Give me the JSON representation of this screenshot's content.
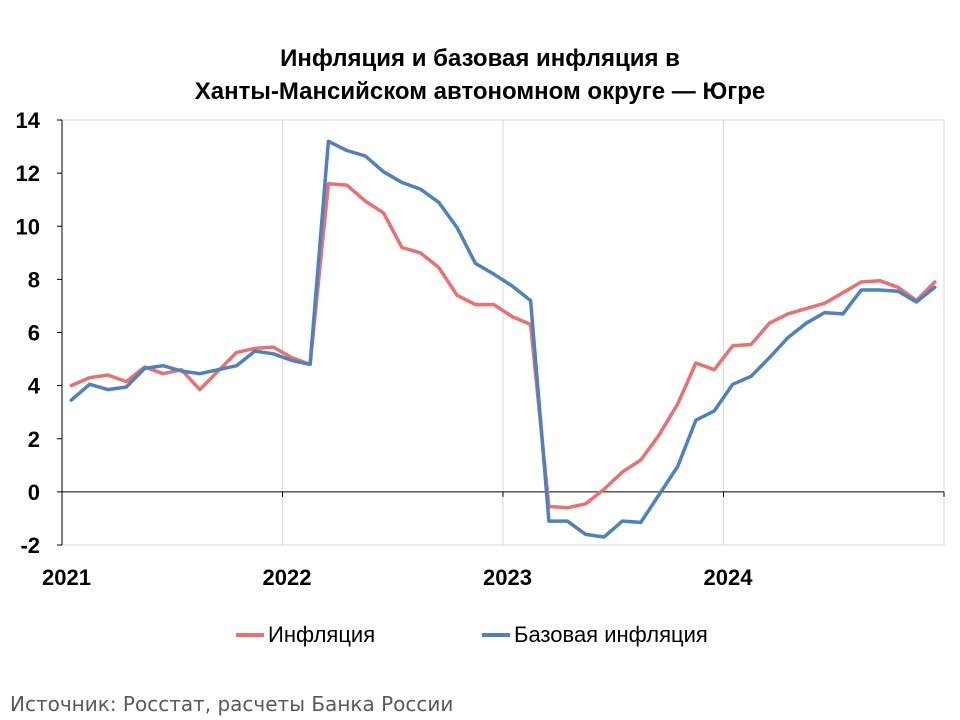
{
  "chart_data": {
    "type": "line",
    "title_line1": "Инфляция и базовая инфляция в",
    "title_line2": "Ханты-Мансийском автономном округе — Югре",
    "xlabel": "",
    "ylabel": "",
    "ylim": [
      -2,
      14
    ],
    "y_ticks": [
      14,
      12,
      10,
      8,
      6,
      4,
      2,
      0,
      -2
    ],
    "x_tick_labels": [
      "2021",
      "2022",
      "2023",
      "2024"
    ],
    "x": [
      "2021-01",
      "2021-02",
      "2021-03",
      "2021-04",
      "2021-05",
      "2021-06",
      "2021-07",
      "2021-08",
      "2021-09",
      "2021-10",
      "2021-11",
      "2021-12",
      "2022-01",
      "2022-02",
      "2022-03",
      "2022-04",
      "2022-05",
      "2022-06",
      "2022-07",
      "2022-08",
      "2022-09",
      "2022-10",
      "2022-11",
      "2022-12",
      "2023-01",
      "2023-02",
      "2023-03",
      "2023-04",
      "2023-05",
      "2023-06",
      "2023-07",
      "2023-08",
      "2023-09",
      "2023-10",
      "2023-11",
      "2023-12",
      "2024-01",
      "2024-02",
      "2024-03",
      "2024-04",
      "2024-05",
      "2024-06",
      "2024-07",
      "2024-08",
      "2024-09",
      "2024-10",
      "2024-11",
      "2024-12"
    ],
    "grid": "vertical lines at year boundaries",
    "legend_position": "bottom",
    "series": [
      {
        "name": "Инфляция",
        "color": "#e87171",
        "values": [
          4.0,
          4.3,
          4.4,
          4.15,
          4.7,
          4.45,
          4.6,
          3.85,
          4.55,
          5.25,
          5.4,
          5.45,
          5.05,
          4.8,
          11.6,
          11.55,
          10.95,
          10.5,
          9.2,
          9.0,
          8.45,
          7.4,
          7.05,
          7.05,
          6.6,
          6.3,
          -0.55,
          -0.6,
          -0.45,
          0.1,
          0.75,
          1.2,
          2.15,
          3.3,
          4.85,
          4.6,
          5.5,
          5.55,
          6.35,
          6.7,
          6.9,
          7.1,
          7.5,
          7.9,
          7.95,
          7.7,
          7.2,
          7.9
        ]
      },
      {
        "name": "Базовая инфляция",
        "color": "#4f81bd",
        "values": [
          3.45,
          4.05,
          3.85,
          3.95,
          4.65,
          4.75,
          4.55,
          4.45,
          4.6,
          4.75,
          5.3,
          5.2,
          4.95,
          4.8,
          13.2,
          12.85,
          12.65,
          12.05,
          11.65,
          11.4,
          10.9,
          9.95,
          8.6,
          8.2,
          7.75,
          7.2,
          -1.1,
          -1.1,
          -1.6,
          -1.7,
          -1.1,
          -1.15,
          -0.1,
          0.95,
          2.7,
          3.05,
          4.05,
          4.35,
          5.05,
          5.8,
          6.35,
          6.75,
          6.7,
          7.6,
          7.6,
          7.55,
          7.15,
          7.7
        ]
      }
    ]
  },
  "source": "Источник: Росстат, расчеты Банка России"
}
